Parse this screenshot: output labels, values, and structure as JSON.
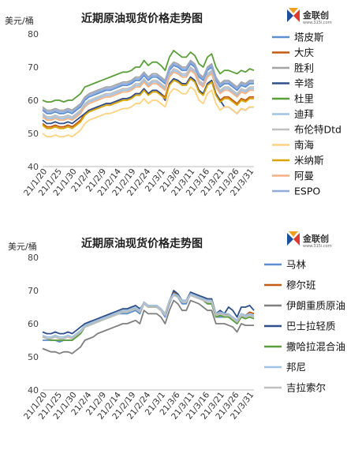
{
  "logo": {
    "text": "金联创",
    "url": "www.315i.com"
  },
  "chart_data": [
    {
      "type": "line",
      "title": "近期原油现货价格走势图",
      "ylabel": "美元/桶",
      "ylim": [
        40,
        80
      ],
      "yticks": [
        40,
        50,
        60,
        70,
        80
      ],
      "x_tick_labels": [
        "21/1/20",
        "21/1/25",
        "21/1/30",
        "21/2/4",
        "21/2/9",
        "21/2/14",
        "21/2/19",
        "21/2/24",
        "21/3/1",
        "21/3/6",
        "21/3/11",
        "21/3/16",
        "21/3/21",
        "21/3/26",
        "21/3/31"
      ],
      "legend_position": "right",
      "series": [
        {
          "name": "塔皮斯",
          "color": "#5b8fd1",
          "values": [
            57,
            56,
            56,
            56.5,
            56,
            56,
            56.5,
            56,
            57,
            58,
            60,
            61,
            61.5,
            62,
            62.5,
            63,
            63,
            63.5,
            64,
            64.5,
            64.5,
            65,
            66,
            66,
            67.5,
            66,
            67,
            67,
            66,
            65,
            69,
            70.5,
            70,
            69,
            69,
            71,
            70,
            67,
            66,
            69,
            70,
            66,
            64,
            65,
            65,
            64,
            63,
            64.5,
            64,
            65,
            65
          ]
        },
        {
          "name": "大庆",
          "color": "#c55a11",
          "values": [
            53,
            52,
            52,
            52.5,
            52,
            52,
            52.5,
            52,
            53,
            54,
            56,
            57,
            57.5,
            58,
            58.5,
            59,
            59,
            59.5,
            60,
            60.5,
            60.5,
            61,
            62,
            62,
            63.5,
            62,
            63,
            63,
            62,
            61,
            65,
            66.5,
            66,
            65,
            65,
            67,
            66,
            63,
            62,
            65,
            66,
            62,
            60,
            61,
            61,
            60,
            59,
            60.5,
            60,
            61,
            61
          ]
        },
        {
          "name": "胜利",
          "color": "#a5a5a5",
          "values": [
            58,
            57,
            57,
            57.5,
            57,
            57,
            57.5,
            57,
            58,
            59,
            61,
            62,
            62.5,
            63,
            63.5,
            64,
            64,
            64.5,
            65,
            65.5,
            65.5,
            66,
            67,
            67,
            68.5,
            67,
            68,
            68,
            67,
            66,
            70,
            71.5,
            71,
            70,
            70,
            72,
            71,
            68,
            67,
            70,
            71,
            67,
            65,
            66,
            66,
            65,
            64,
            65.5,
            65,
            66,
            66
          ]
        },
        {
          "name": "辛塔",
          "color": "#2f4e8a",
          "values": [
            54,
            53,
            53,
            53.5,
            53,
            53,
            53.5,
            53,
            54,
            55,
            56,
            57,
            57.5,
            58,
            58.5,
            59,
            59,
            59.5,
            60,
            60.5,
            60.5,
            61,
            62,
            62,
            63.5,
            62,
            63,
            63,
            62,
            60,
            65,
            66.5,
            66,
            65,
            65,
            67,
            66,
            63,
            62,
            65,
            66,
            62,
            60,
            58,
            58,
            57,
            56,
            57.5,
            57,
            58,
            58
          ]
        },
        {
          "name": "杜里",
          "color": "#5a9f3a",
          "values": [
            60,
            59.5,
            59.5,
            60,
            60,
            59.5,
            60,
            60,
            61,
            62,
            64,
            64.5,
            65,
            65.5,
            66,
            66.5,
            67,
            67.5,
            68,
            68.5,
            68.5,
            69,
            70,
            70,
            72,
            70.5,
            71.5,
            71.5,
            70.5,
            69,
            73,
            75,
            74,
            73,
            73,
            74.5,
            73.5,
            71,
            70,
            73,
            74,
            70,
            68,
            69,
            69,
            68.5,
            68,
            69,
            68.5,
            69.5,
            69
          ]
        },
        {
          "name": "迪拜",
          "color": "#9dc3e6",
          "values": [
            55.5,
            54.5,
            54.5,
            55,
            54.5,
            54.5,
            55,
            54.5,
            55.5,
            56.5,
            58.5,
            59.5,
            60,
            60.5,
            61,
            61.5,
            61.5,
            62,
            62.5,
            63,
            63,
            63.5,
            64.5,
            64.5,
            66,
            64.5,
            65.5,
            65.5,
            64.5,
            63.5,
            67.5,
            69,
            68.5,
            67.5,
            67.5,
            69.5,
            68.5,
            65.5,
            64.5,
            67.5,
            68.5,
            64.5,
            62.5,
            63.5,
            63.5,
            62.5,
            61.5,
            63,
            62.5,
            63.5,
            63.5
          ]
        },
        {
          "name": "布伦特Dtd",
          "color": "#bfbfbf",
          "values": [
            56,
            55,
            55,
            55.5,
            55,
            55,
            55.5,
            55,
            56,
            57,
            59,
            60,
            60.5,
            61,
            61.5,
            62,
            62,
            62.5,
            63,
            63.5,
            63.5,
            64,
            65,
            65,
            66.5,
            65,
            66,
            66,
            65,
            64,
            68,
            69.5,
            69,
            68,
            68,
            70,
            69,
            66,
            65,
            68,
            69,
            65,
            63,
            64,
            64,
            63,
            62,
            63.5,
            63,
            64,
            64
          ]
        },
        {
          "name": "南海",
          "color": "#ffd27f",
          "values": [
            50,
            49,
            49,
            49.5,
            49,
            49,
            49.5,
            49,
            50,
            51,
            53,
            54,
            54.5,
            55,
            55.5,
            56,
            56,
            56.5,
            57,
            57.5,
            57.5,
            58,
            59,
            59,
            60.5,
            59,
            60,
            60,
            59,
            58,
            62,
            63.5,
            63,
            62,
            62,
            64,
            63,
            60,
            59,
            62,
            63,
            59,
            57,
            58,
            58,
            57,
            56,
            57.5,
            57,
            58,
            58
          ]
        },
        {
          "name": "米纳斯",
          "color": "#d9a400",
          "values": [
            52.5,
            51.5,
            51.5,
            52,
            51.5,
            51.5,
            52,
            51.5,
            52.5,
            53.5,
            55.5,
            56.5,
            57,
            57.5,
            58,
            58.5,
            58.5,
            59,
            59.5,
            60,
            60,
            60.5,
            61.5,
            61.5,
            63,
            61.5,
            62.5,
            62.5,
            61.5,
            60.5,
            64.5,
            66,
            65.5,
            64.5,
            64.5,
            66.5,
            65.5,
            62.5,
            61.5,
            64.5,
            65.5,
            61.5,
            59.5,
            60.5,
            60.5,
            59.5,
            58.5,
            60,
            59.5,
            60.5,
            60.5
          ]
        },
        {
          "name": "阿曼",
          "color": "#f4b183",
          "values": [
            55,
            54,
            54,
            54.5,
            54,
            54,
            54.5,
            54,
            55,
            56,
            58,
            59,
            59.5,
            60,
            60.5,
            61,
            61,
            61.5,
            62,
            62.5,
            62.5,
            63,
            64,
            64,
            65.5,
            64,
            65,
            65,
            64,
            63,
            67,
            68.5,
            68,
            67,
            67,
            69,
            68,
            65,
            64,
            67,
            68,
            64,
            62,
            63,
            63,
            62,
            61,
            62.5,
            62,
            63,
            63
          ]
        },
        {
          "name": "ESPO",
          "color": "#8faadc",
          "values": [
            57.5,
            56.5,
            56.5,
            57,
            56.5,
            56.5,
            57,
            56.5,
            57.5,
            58.5,
            60.5,
            61.5,
            62,
            62.5,
            63,
            63.5,
            63.5,
            64,
            64.5,
            65,
            65,
            65.5,
            66.5,
            66.5,
            68,
            66.5,
            67.5,
            67.5,
            66.5,
            65.5,
            69.5,
            71,
            70.5,
            69.5,
            69.5,
            71.5,
            70.5,
            67.5,
            66.5,
            69.5,
            70.5,
            66.5,
            64.5,
            65.5,
            65.5,
            64.5,
            63.5,
            65,
            64.5,
            65.5,
            65.5
          ]
        }
      ]
    },
    {
      "type": "line",
      "title": "近期原油现货价格走势图",
      "ylabel": "美元/桶",
      "ylim": [
        40,
        80
      ],
      "yticks": [
        40,
        50,
        60,
        70,
        80
      ],
      "x_tick_labels": [
        "21/1/20",
        "21/1/25",
        "21/1/30",
        "21/2/4",
        "21/2/9",
        "21/2/14",
        "21/2/19",
        "21/2/24",
        "21/3/1",
        "21/3/6",
        "21/3/11",
        "21/3/16",
        "21/3/21",
        "21/3/26",
        "21/3/31"
      ],
      "legend_position": "right",
      "series": [
        {
          "name": "马林",
          "color": "#5b8fd1",
          "values": [
            55,
            55,
            55,
            55,
            54.5,
            55,
            55,
            55,
            56,
            57,
            59,
            59.5,
            60,
            60.5,
            61,
            61.5,
            62,
            62.5,
            63,
            63,
            63,
            63.5,
            64,
            63,
            66,
            65,
            65,
            65,
            64,
            62,
            66,
            69,
            68,
            66,
            66,
            69,
            68.5,
            68,
            67,
            66,
            66,
            62,
            62,
            62,
            62,
            61,
            60,
            62,
            62,
            63,
            62
          ]
        },
        {
          "name": "穆尔班",
          "color": "#c55a11",
          "values": [
            56,
            55.5,
            55.5,
            56,
            55.5,
            55.5,
            56,
            55.5,
            56.5,
            57.5,
            59.5,
            60,
            60.5,
            61,
            61.5,
            62,
            62.5,
            63,
            63.5,
            64,
            64,
            64.5,
            65,
            64,
            66.5,
            65.5,
            65.5,
            65.5,
            64.5,
            63,
            67,
            69.5,
            68.5,
            67,
            67,
            69,
            68.5,
            68,
            67.5,
            67,
            67,
            63,
            63,
            63,
            62.5,
            62,
            61,
            63,
            62.5,
            63.5,
            63
          ]
        },
        {
          "name": "伊朗重质原油",
          "color": "#7f7f7f",
          "values": [
            52.5,
            52,
            51.5,
            51.5,
            51,
            51.5,
            51.5,
            51,
            52,
            53,
            55,
            55.5,
            56,
            57,
            57.5,
            58,
            58.5,
            59,
            59.5,
            60,
            60,
            60.5,
            61,
            60,
            64,
            63,
            63,
            63,
            62,
            60,
            64,
            67,
            66,
            64,
            64,
            67,
            66.5,
            66,
            65,
            64,
            64,
            60,
            60,
            60,
            59.5,
            59,
            57.5,
            60,
            59.5,
            59.5,
            59.5
          ]
        },
        {
          "name": "巴士拉轻质",
          "color": "#2f4e8a",
          "values": [
            57.5,
            57,
            57,
            57.5,
            57,
            57,
            57.5,
            57,
            58,
            59,
            60,
            60.5,
            61,
            61.5,
            62,
            62.5,
            63,
            63.5,
            64,
            64.5,
            64.5,
            65,
            65.5,
            64.5,
            66,
            65,
            65,
            65,
            64,
            62.5,
            66.5,
            70,
            69,
            67,
            67,
            69.5,
            69,
            68.5,
            68,
            67.5,
            67.5,
            63,
            64,
            63,
            65,
            64,
            62,
            65,
            65,
            65.5,
            64
          ]
        },
        {
          "name": "撒哈拉混合油",
          "color": "#5a9f3a",
          "values": [
            56,
            55.5,
            55,
            55,
            55,
            55,
            55,
            55,
            56,
            57,
            59,
            59.5,
            60,
            60.5,
            61,
            61.5,
            62,
            62.5,
            63,
            63.5,
            63.5,
            64,
            64.5,
            63.5,
            66,
            65,
            65,
            65,
            64,
            63,
            66.5,
            69,
            68,
            66.5,
            66.5,
            69,
            68.5,
            68,
            67,
            66,
            66,
            62,
            62.5,
            62,
            62,
            61,
            60,
            62,
            61.5,
            62,
            61.5
          ]
        },
        {
          "name": "邦尼",
          "color": "#9dc3e6",
          "values": [
            56.5,
            56,
            56,
            56.5,
            56,
            56,
            56.5,
            56,
            57,
            58,
            59.5,
            60,
            60.5,
            61,
            61.5,
            62,
            62.5,
            63,
            63.5,
            64,
            64,
            64.5,
            65,
            64,
            66.5,
            65.5,
            65.5,
            65.5,
            64.5,
            63,
            67,
            69,
            68.5,
            67,
            67,
            69,
            68.5,
            68,
            67.5,
            67,
            67,
            63,
            63.5,
            63,
            63,
            62,
            61,
            63,
            62.5,
            63,
            62.5
          ]
        },
        {
          "name": "吉拉索尔",
          "color": "#bfbfbf",
          "values": [
            56,
            55.5,
            55.5,
            56,
            55.5,
            55.5,
            56,
            55.5,
            56.5,
            57.5,
            59,
            59.5,
            60,
            60.5,
            61,
            61.5,
            62,
            62.5,
            63,
            63.5,
            63.5,
            64,
            64.5,
            63.5,
            66,
            65,
            65,
            65,
            64,
            62.5,
            66.5,
            68.5,
            68,
            66.5,
            66.5,
            68.5,
            68,
            67.5,
            67,
            66.5,
            66.5,
            62.5,
            63,
            62.5,
            62.5,
            61.5,
            60.5,
            62.5,
            62,
            62.5,
            62
          ]
        }
      ]
    }
  ]
}
